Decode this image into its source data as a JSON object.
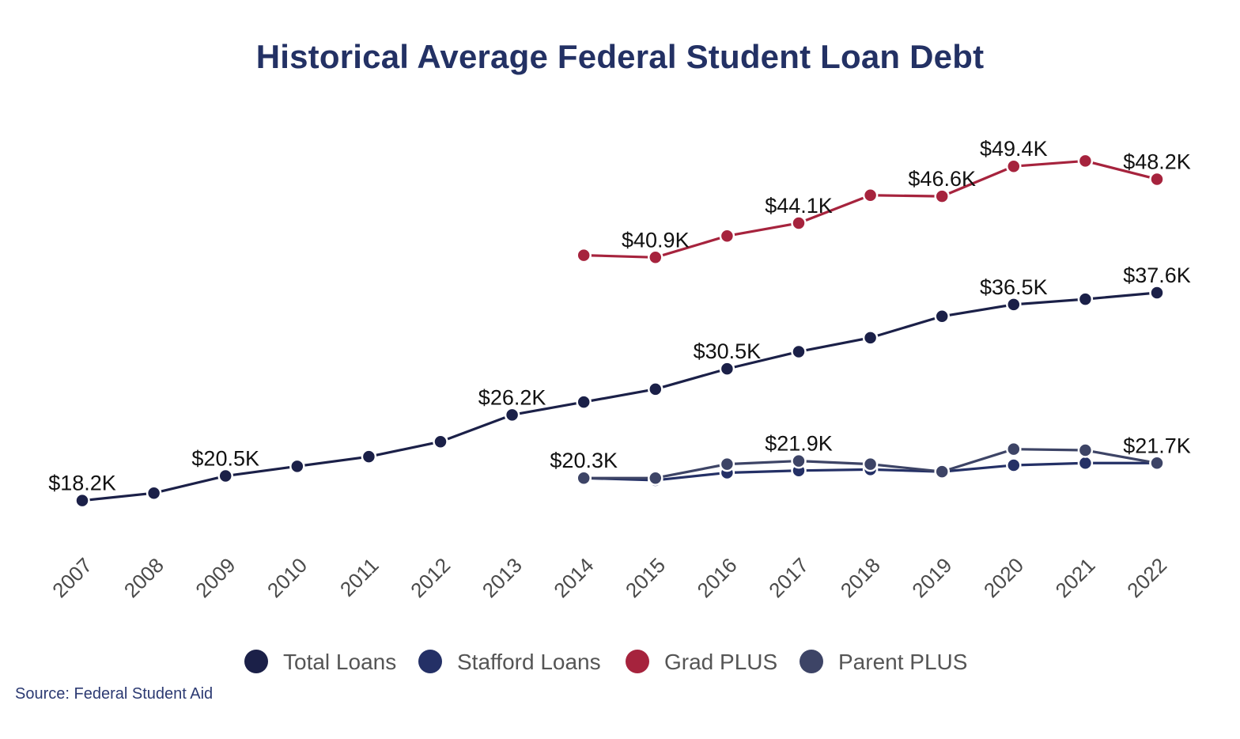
{
  "chart_data": {
    "type": "line",
    "title": "Historical Average Federal Student Loan Debt",
    "xlabel": "",
    "ylabel": "",
    "x": [
      "2007",
      "2008",
      "2009",
      "2010",
      "2011",
      "2012",
      "2013",
      "2014",
      "2015",
      "2016",
      "2017",
      "2018",
      "2019",
      "2020",
      "2021",
      "2022"
    ],
    "ylim": [
      15,
      52
    ],
    "grid": false,
    "legend_position": "bottom",
    "series": [
      {
        "name": "Total Loans",
        "color": "#1b2048",
        "values": [
          18.2,
          18.9,
          20.5,
          21.4,
          22.3,
          23.7,
          26.2,
          27.4,
          28.6,
          30.5,
          32.1,
          33.4,
          35.4,
          36.5,
          37.0,
          37.6
        ],
        "labels": {
          "0": "$18.2K",
          "2": "$20.5K",
          "6": "$26.2K",
          "9": "$30.5K",
          "13": "$36.5K",
          "15": "$37.6K"
        }
      },
      {
        "name": "Stafford Loans",
        "color": "#243066",
        "values": [
          null,
          null,
          null,
          null,
          null,
          null,
          null,
          20.3,
          20.1,
          20.8,
          21.0,
          21.1,
          20.9,
          21.5,
          21.7,
          21.7
        ],
        "labels": {}
      },
      {
        "name": "Grad PLUS",
        "color": "#a6233d",
        "values": [
          null,
          null,
          null,
          null,
          null,
          null,
          null,
          41.1,
          40.9,
          42.9,
          44.1,
          46.7,
          46.6,
          49.4,
          49.9,
          48.2
        ],
        "labels": {
          "8": "$40.9K",
          "10": "$44.1K",
          "12": "$46.6K",
          "13": "$49.4K",
          "15": "$48.2K"
        }
      },
      {
        "name": "Parent PLUS",
        "color": "#3d4466",
        "values": [
          null,
          null,
          null,
          null,
          null,
          null,
          null,
          20.3,
          20.3,
          21.6,
          21.9,
          21.6,
          20.9,
          23.0,
          22.9,
          21.7
        ],
        "labels": {
          "7": "$20.3K",
          "10": "$21.9K",
          "15": "$21.7K"
        }
      }
    ]
  },
  "source": "Source: Federal Student Aid"
}
